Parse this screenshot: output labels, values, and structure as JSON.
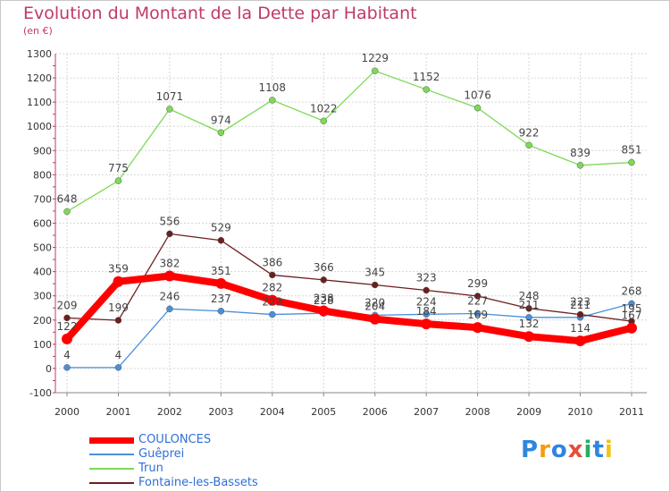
{
  "chart_data": {
    "type": "line",
    "title": "Evolution du Montant de la Dette par Habitant",
    "subtitle": "(en €)",
    "x": [
      "2000",
      "2001",
      "2002",
      "2003",
      "2004",
      "2005",
      "2006",
      "2007",
      "2008",
      "2009",
      "2010",
      "2011"
    ],
    "ylim": [
      -100,
      1300
    ],
    "yticks": [
      -100,
      0,
      100,
      200,
      300,
      400,
      500,
      600,
      700,
      800,
      900,
      1000,
      1100,
      1200,
      1300
    ],
    "grid": true,
    "legend_position": "bottom-left",
    "series": [
      {
        "name": "COULONCES",
        "color": "#ff0000",
        "values": [
          122,
          359,
          382,
          351,
          282,
          238,
          204,
          184,
          169,
          132,
          114,
          167
        ]
      },
      {
        "name": "Guêprei",
        "color": "#4a90d9",
        "values": [
          4,
          4,
          246,
          237,
          223,
          228,
          220,
          224,
          227,
          211,
          211,
          268
        ]
      },
      {
        "name": "Trun",
        "color": "#7ed957",
        "values": [
          648,
          775,
          1071,
          974,
          1108,
          1022,
          1229,
          1152,
          1076,
          922,
          839,
          851
        ]
      },
      {
        "name": "Fontaine-les-Bassets",
        "color": "#6b1f1f",
        "values": [
          209,
          199,
          556,
          529,
          386,
          366,
          345,
          323,
          299,
          248,
          223,
          195
        ]
      }
    ]
  },
  "logo": {
    "text": "Proxiti",
    "colors": [
      "#2e86de",
      "#f39c12",
      "#2e86de",
      "#e74c3c",
      "#27ae60",
      "#2e86de",
      "#f1c40f"
    ]
  }
}
